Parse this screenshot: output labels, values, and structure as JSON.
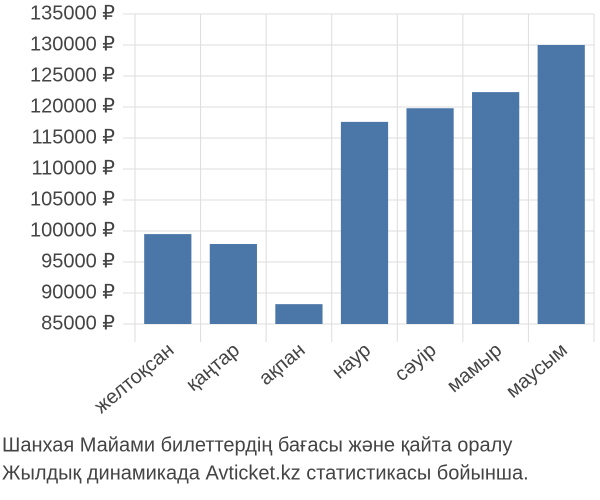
{
  "chart_data": {
    "type": "bar",
    "title": [
      "Шанхая Майами билеттердің бағасы және қайта оралу",
      "Жылдық динамикада Avticket.kz статистикасы бойынша."
    ],
    "categories": [
      "желтоқсан",
      "қаңтар",
      "ақпан",
      "наур",
      "сәуір",
      "мамыр",
      "маусым"
    ],
    "values": [
      99500,
      97900,
      88200,
      117600,
      119800,
      122400,
      130000
    ],
    "color": "#4a76a8",
    "ylim": [
      85000,
      135000
    ],
    "yticks": [
      {
        "value": 85000,
        "label": "85000 ₽"
      },
      {
        "value": 90000,
        "label": "90000 ₽"
      },
      {
        "value": 95000,
        "label": "95000 ₽"
      },
      {
        "value": 100000,
        "label": "100000 ₽"
      },
      {
        "value": 105000,
        "label": "105000 ₽"
      },
      {
        "value": 110000,
        "label": "110000 ₽"
      },
      {
        "value": 115000,
        "label": "115000 ₽"
      },
      {
        "value": 120000,
        "label": "120000 ₽"
      },
      {
        "value": 125000,
        "label": "125000 ₽"
      },
      {
        "value": 130000,
        "label": "130000 ₽"
      },
      {
        "value": 135000,
        "label": "135000 ₽"
      }
    ],
    "grid": true
  }
}
